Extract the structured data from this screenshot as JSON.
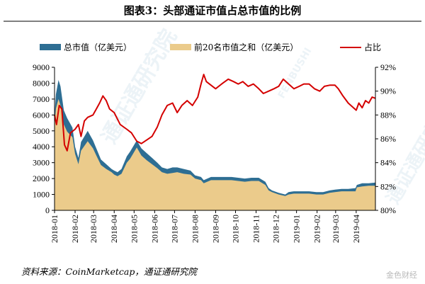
{
  "chart_data": {
    "type": "area",
    "title": "图表3：头部通证市值占总市值的比例",
    "source": "资料来源：CoinMarketcap，通证通研究院",
    "categories": [
      "2018-01",
      "2018-02",
      "2018-03",
      "2018-04",
      "2018-05",
      "2018-06",
      "2018-07",
      "2018-08",
      "2018-09",
      "2018-10",
      "2018-11",
      "2018-12",
      "2019-01",
      "2019-02",
      "2019-03",
      "2019-04"
    ],
    "x_range": [
      "2018-01-01",
      "2019-04-30"
    ],
    "y_left": {
      "min": 0,
      "max": 9000,
      "ticks": [
        "0",
        "1000",
        "2000",
        "3000",
        "4000",
        "5000",
        "6000",
        "7000",
        "8000",
        "9000"
      ]
    },
    "y_right": {
      "min": 80,
      "max": 92,
      "ticks": [
        "80%",
        "82%",
        "84%",
        "86%",
        "88%",
        "90%",
        "92%"
      ]
    },
    "legend_position": "top",
    "grid": false,
    "series": [
      {
        "name": "总市值（亿美元）",
        "axis": "left",
        "kind": "area",
        "color": "#2e6e93",
        "x": [
          "2018-01-01",
          "2018-01-03",
          "2018-01-07",
          "2018-01-10",
          "2018-01-15",
          "2018-01-20",
          "2018-01-28",
          "2018-02-01",
          "2018-02-06",
          "2018-02-10",
          "2018-02-20",
          "2018-02-28",
          "2018-03-05",
          "2018-03-12",
          "2018-03-20",
          "2018-03-28",
          "2018-04-01",
          "2018-04-06",
          "2018-04-12",
          "2018-04-20",
          "2018-04-25",
          "2018-05-05",
          "2018-05-12",
          "2018-05-20",
          "2018-05-28",
          "2018-06-05",
          "2018-06-12",
          "2018-06-20",
          "2018-06-28",
          "2018-07-05",
          "2018-07-15",
          "2018-07-25",
          "2018-08-01",
          "2018-08-10",
          "2018-08-14",
          "2018-08-25",
          "2018-09-05",
          "2018-09-15",
          "2018-09-25",
          "2018-10-05",
          "2018-10-15",
          "2018-10-25",
          "2018-11-05",
          "2018-11-15",
          "2018-11-20",
          "2018-11-25",
          "2018-12-05",
          "2018-12-15",
          "2018-12-20",
          "2018-12-28",
          "2019-01-10",
          "2019-01-20",
          "2019-01-31",
          "2019-02-10",
          "2019-02-20",
          "2019-02-28",
          "2019-03-10",
          "2019-03-20",
          "2019-03-31",
          "2019-04-02",
          "2019-04-10",
          "2019-04-20",
          "2019-04-30"
        ],
        "values": [
          6000,
          7300,
          8200,
          7800,
          6300,
          5800,
          5200,
          4000,
          3300,
          4300,
          5000,
          4400,
          3900,
          3200,
          2900,
          2600,
          2500,
          2400,
          2600,
          3400,
          3700,
          4400,
          3900,
          3600,
          3300,
          3000,
          2700,
          2600,
          2700,
          2700,
          2600,
          2500,
          2200,
          2100,
          1900,
          2100,
          2100,
          2100,
          2100,
          2050,
          2000,
          2050,
          2050,
          1800,
          1400,
          1250,
          1100,
          1000,
          1150,
          1200,
          1200,
          1200,
          1150,
          1150,
          1250,
          1300,
          1350,
          1350,
          1400,
          1600,
          1700,
          1700,
          1750
        ]
      },
      {
        "name": "前20名市值之和（亿美元）",
        "axis": "left",
        "kind": "area",
        "color": "#ebcb8b",
        "x": [
          "2018-01-01",
          "2018-01-03",
          "2018-01-07",
          "2018-01-10",
          "2018-01-15",
          "2018-01-20",
          "2018-01-28",
          "2018-02-01",
          "2018-02-06",
          "2018-02-10",
          "2018-02-20",
          "2018-02-28",
          "2018-03-05",
          "2018-03-12",
          "2018-03-20",
          "2018-03-28",
          "2018-04-01",
          "2018-04-06",
          "2018-04-12",
          "2018-04-20",
          "2018-04-25",
          "2018-05-05",
          "2018-05-12",
          "2018-05-20",
          "2018-05-28",
          "2018-06-05",
          "2018-06-12",
          "2018-06-20",
          "2018-06-28",
          "2018-07-05",
          "2018-07-15",
          "2018-07-25",
          "2018-08-01",
          "2018-08-10",
          "2018-08-14",
          "2018-08-25",
          "2018-09-05",
          "2018-09-15",
          "2018-09-25",
          "2018-10-05",
          "2018-10-15",
          "2018-10-25",
          "2018-11-05",
          "2018-11-15",
          "2018-11-20",
          "2018-11-25",
          "2018-12-05",
          "2018-12-15",
          "2018-12-20",
          "2018-12-28",
          "2019-01-10",
          "2019-01-20",
          "2019-01-31",
          "2019-02-10",
          "2019-02-20",
          "2019-02-28",
          "2019-03-10",
          "2019-03-20",
          "2019-03-31",
          "2019-04-02",
          "2019-04-10",
          "2019-04-20",
          "2019-04-30"
        ],
        "values": [
          5300,
          6400,
          7000,
          6600,
          5400,
          4950,
          4600,
          3550,
          2900,
          3750,
          4350,
          3900,
          3450,
          2850,
          2600,
          2400,
          2250,
          2150,
          2300,
          3000,
          3250,
          3950,
          3450,
          3150,
          2900,
          2650,
          2400,
          2300,
          2350,
          2400,
          2300,
          2250,
          2000,
          1900,
          1700,
          1900,
          1900,
          1900,
          1900,
          1850,
          1800,
          1850,
          1850,
          1600,
          1250,
          1150,
          1000,
          900,
          1000,
          1050,
          1050,
          1050,
          1000,
          1000,
          1100,
          1150,
          1200,
          1200,
          1200,
          1450,
          1500,
          1550,
          1550
        ]
      },
      {
        "name": "占比",
        "axis": "right",
        "kind": "line",
        "color": "#d40000",
        "x": [
          "2018-01-01",
          "2018-01-04",
          "2018-01-08",
          "2018-01-12",
          "2018-01-16",
          "2018-01-20",
          "2018-01-25",
          "2018-02-01",
          "2018-02-06",
          "2018-02-10",
          "2018-02-15",
          "2018-02-20",
          "2018-02-28",
          "2018-03-05",
          "2018-03-10",
          "2018-03-15",
          "2018-03-20",
          "2018-03-25",
          "2018-04-01",
          "2018-04-10",
          "2018-04-20",
          "2018-04-27",
          "2018-05-05",
          "2018-05-12",
          "2018-05-20",
          "2018-05-28",
          "2018-06-05",
          "2018-06-12",
          "2018-06-20",
          "2018-06-28",
          "2018-07-05",
          "2018-07-12",
          "2018-07-20",
          "2018-07-28",
          "2018-08-05",
          "2018-08-10",
          "2018-08-14",
          "2018-08-18",
          "2018-08-25",
          "2018-09-01",
          "2018-09-10",
          "2018-09-20",
          "2018-09-28",
          "2018-10-05",
          "2018-10-12",
          "2018-10-20",
          "2018-10-28",
          "2018-11-05",
          "2018-11-12",
          "2018-11-20",
          "2018-11-28",
          "2018-12-05",
          "2018-12-12",
          "2018-12-20",
          "2018-12-28",
          "2019-01-05",
          "2019-01-12",
          "2019-01-20",
          "2019-01-28",
          "2019-02-05",
          "2019-02-12",
          "2019-02-20",
          "2019-02-28",
          "2019-03-05",
          "2019-03-12",
          "2019-03-20",
          "2019-03-28",
          "2019-04-01",
          "2019-04-05",
          "2019-04-10",
          "2019-04-15",
          "2019-04-20",
          "2019-04-25",
          "2019-04-30"
        ],
        "values": [
          88.0,
          87.2,
          88.8,
          88.5,
          85.5,
          85.0,
          86.5,
          86.8,
          87.2,
          86.2,
          87.5,
          87.8,
          88.0,
          88.5,
          89.0,
          89.6,
          89.2,
          88.5,
          88.2,
          87.2,
          86.8,
          86.5,
          85.8,
          85.6,
          85.9,
          86.2,
          87.0,
          88.0,
          88.8,
          89.0,
          88.2,
          88.8,
          89.2,
          88.8,
          89.5,
          90.6,
          91.4,
          90.8,
          90.5,
          90.2,
          90.6,
          91.0,
          90.8,
          90.6,
          90.8,
          90.4,
          90.6,
          90.2,
          89.8,
          90.0,
          90.2,
          90.4,
          91.0,
          90.6,
          90.2,
          90.4,
          90.6,
          90.6,
          90.2,
          90.0,
          90.4,
          90.5,
          90.5,
          90.2,
          89.6,
          89.0,
          88.6,
          88.4,
          89.0,
          88.6,
          89.2,
          89.0,
          89.5,
          89.4
        ]
      }
    ],
    "colors": {
      "axis": "#000000",
      "watermark": "#d8e6ee"
    },
    "watermark": [
      "通证通研究院",
      "FENBUSHI",
      "金色财经"
    ]
  }
}
